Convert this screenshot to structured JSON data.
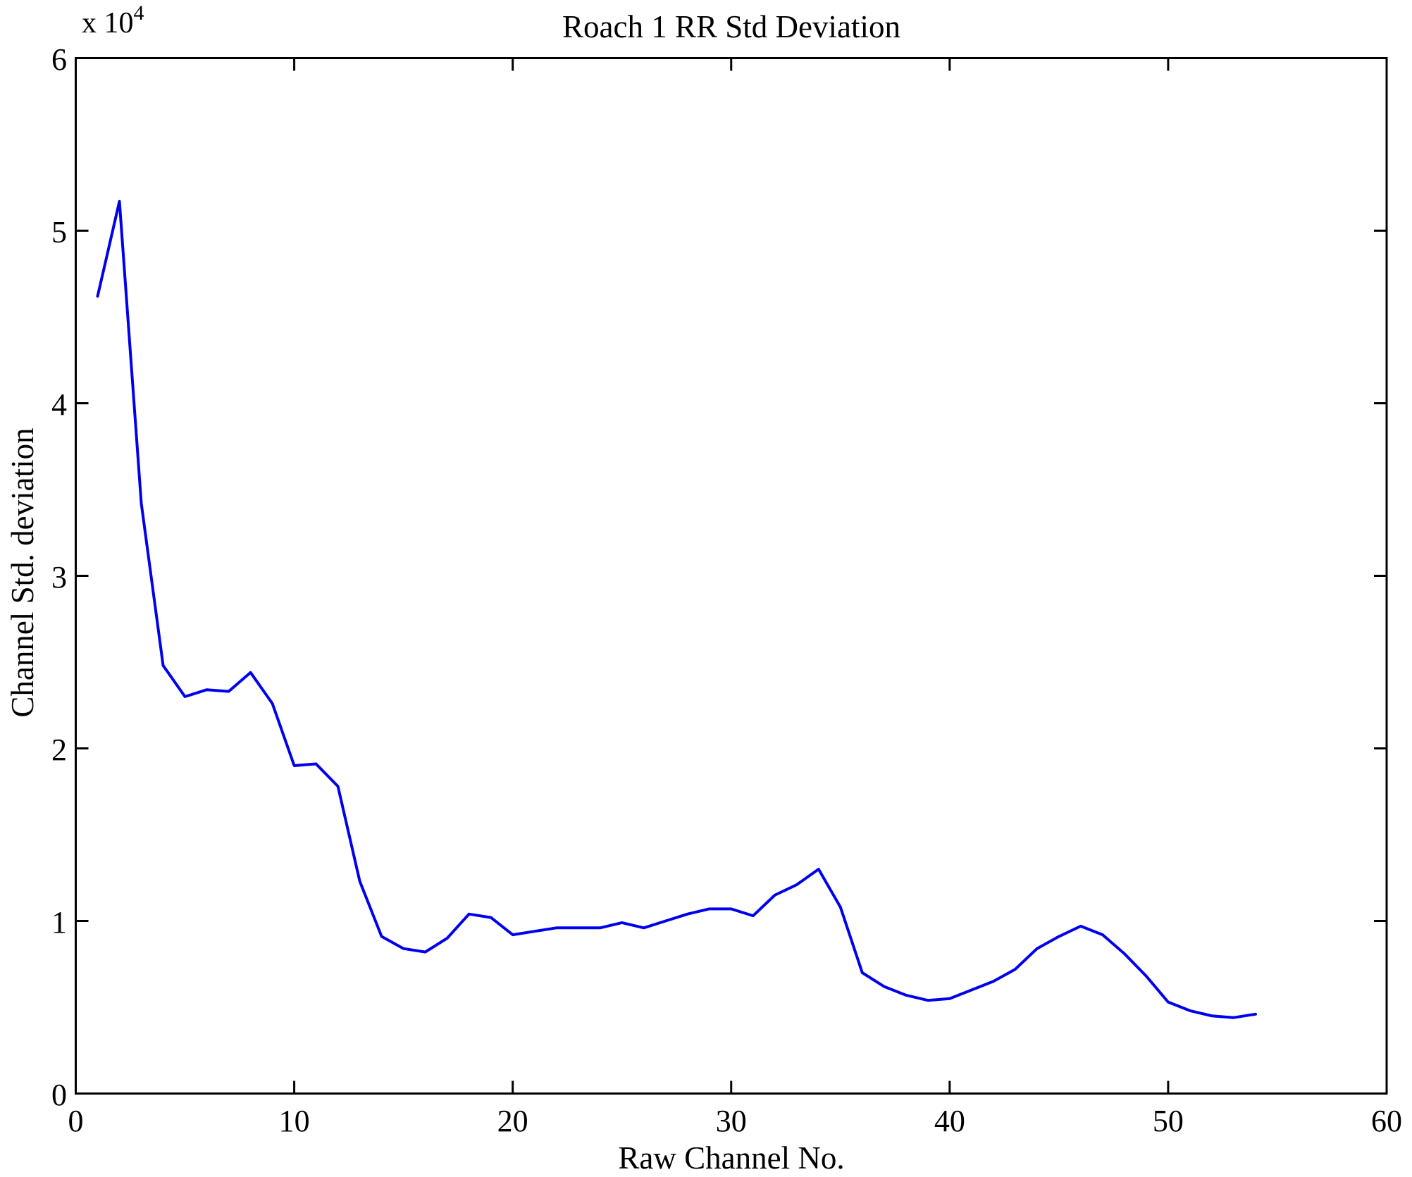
{
  "page": {
    "background_color": "#ffffff",
    "text_color": "#000000"
  },
  "chart_data": {
    "type": "line",
    "title": "Roach 1 RR Std Deviation",
    "xlabel": "Raw Channel No.",
    "ylabel": "Channel Std. deviation",
    "y_multiplier_base": "x 10",
    "y_multiplier_exponent": "4",
    "line_color": "#0000EE",
    "axis_color": "#000000",
    "grid": false,
    "legend": null,
    "xlim": [
      0,
      60
    ],
    "ylim": [
      0,
      60000
    ],
    "x_ticks": [
      0,
      10,
      20,
      30,
      40,
      50,
      60
    ],
    "y_ticks": [
      0,
      1,
      2,
      3,
      4,
      5,
      6
    ],
    "x": [
      1,
      2,
      3,
      4,
      5,
      6,
      7,
      8,
      9,
      10,
      11,
      12,
      13,
      14,
      15,
      16,
      17,
      18,
      19,
      20,
      21,
      22,
      23,
      24,
      25,
      26,
      27,
      28,
      29,
      30,
      31,
      32,
      33,
      34,
      35,
      36,
      37,
      38,
      39,
      40,
      41,
      42,
      43,
      44,
      45,
      46,
      47,
      48,
      49,
      50,
      51,
      52,
      53,
      54
    ],
    "values": [
      46200,
      51700,
      34200,
      24800,
      23000,
      23400,
      23300,
      24400,
      22600,
      19000,
      19100,
      17800,
      12300,
      9100,
      8400,
      8200,
      9000,
      10400,
      10200,
      9200,
      9400,
      9600,
      9600,
      9600,
      9900,
      9600,
      10000,
      10400,
      10700,
      10700,
      10300,
      11500,
      12100,
      13000,
      10800,
      7000,
      6200,
      5700,
      5400,
      5500,
      6000,
      6500,
      7200,
      8400,
      9100,
      9700,
      9200,
      8100,
      6800,
      5300,
      4800,
      4500,
      4400,
      4600
    ]
  }
}
